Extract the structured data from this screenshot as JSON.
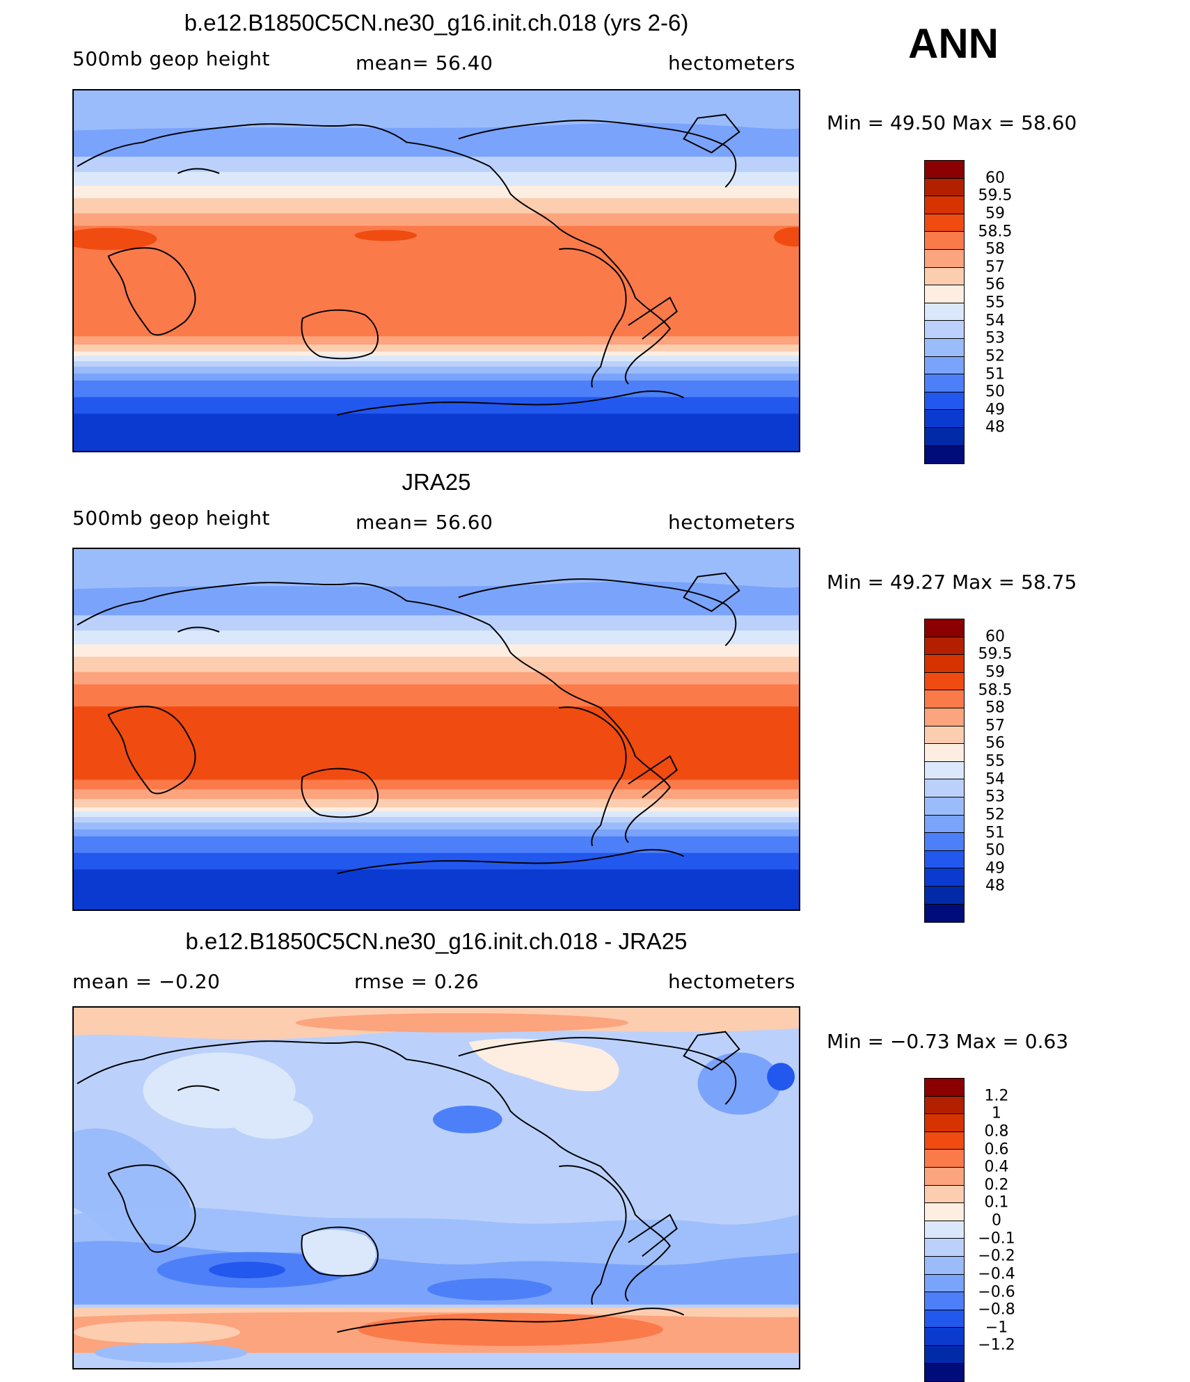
{
  "ann_label": "ANN",
  "panels": [
    {
      "title": "b.e12.B1850C5CN.ne30_g16.init.ch.018 (yrs 2-6)",
      "left_label": "500mb  geop  height",
      "center_label": "mean=   56.40",
      "right_label": "hectometers",
      "minmax": "Min  =    49.50  Max  =    58.60",
      "colorbar_ticks": [
        "60",
        "59.5",
        "59",
        "58.5",
        "58",
        "57",
        "56",
        "55",
        "54",
        "53",
        "52",
        "51",
        "50",
        "49",
        "48"
      ],
      "colorbar_colors": [
        "#8b0000",
        "#b22000",
        "#d63300",
        "#f04b10",
        "#fb7a4a",
        "#fca47d",
        "#fdcdb0",
        "#fdeee1",
        "#dbe8fb",
        "#bbd1fb",
        "#9bbcfb",
        "#7aa3fb",
        "#4d80f8",
        "#2258ee",
        "#0a3ad0",
        "#002aa8",
        "#000c7a"
      ]
    },
    {
      "title": "JRA25",
      "left_label": "500mb  geop  height",
      "center_label": "mean=   56.60",
      "right_label": "hectometers",
      "minmax": "Min  =    49.27  Max  =    58.75",
      "colorbar_ticks": [
        "60",
        "59.5",
        "59",
        "58.5",
        "58",
        "57",
        "56",
        "55",
        "54",
        "53",
        "52",
        "51",
        "50",
        "49",
        "48"
      ],
      "colorbar_colors": [
        "#8b0000",
        "#b22000",
        "#d63300",
        "#f04b10",
        "#fb7a4a",
        "#fca47d",
        "#fdcdb0",
        "#fdeee1",
        "#dbe8fb",
        "#bbd1fb",
        "#9bbcfb",
        "#7aa3fb",
        "#4d80f8",
        "#2258ee",
        "#0a3ad0",
        "#002aa8",
        "#000c7a"
      ]
    },
    {
      "title": "b.e12.B1850C5CN.ne30_g16.init.ch.018 - JRA25",
      "left_label": "mean  =    −0.20",
      "center_label": "rmse  =     0.26",
      "right_label": "hectometers",
      "minmax": "Min  =   −0.73  Max  =     0.63",
      "colorbar_ticks": [
        "1.2",
        "1",
        "0.8",
        "0.6",
        "0.4",
        "0.2",
        "0.1",
        "0",
        "−0.1",
        "−0.2",
        "−0.4",
        "−0.6",
        "−0.8",
        "−1",
        "−1.2"
      ],
      "colorbar_colors": [
        "#8b0000",
        "#b22000",
        "#d63300",
        "#f04b10",
        "#fb7a4a",
        "#fca47d",
        "#fdcdb0",
        "#fdeee1",
        "#dbe8fb",
        "#bbd1fb",
        "#9bbcfb",
        "#7aa3fb",
        "#4d80f8",
        "#2258ee",
        "#0a3ad0",
        "#002aa8",
        "#000c7a"
      ]
    }
  ]
}
